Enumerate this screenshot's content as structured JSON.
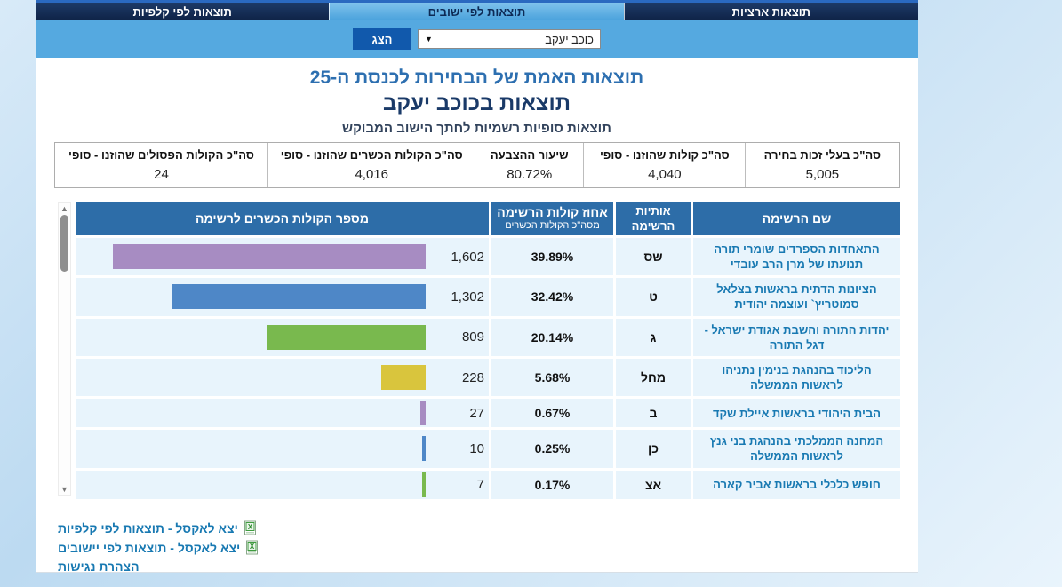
{
  "tabs": [
    {
      "label": "תוצאות ארציות",
      "active": false
    },
    {
      "label": "תוצאות לפי ישובים",
      "active": true
    },
    {
      "label": "תוצאות לפי קלפיות",
      "active": false
    }
  ],
  "filter": {
    "selected_locality": "כוכב יעקב",
    "dropdown_caret": "▼",
    "show_button_label": "הצג"
  },
  "titles": {
    "main": "תוצאות האמת של הבחירות לכנסת ה-25",
    "locality": "תוצאות בכוכב יעקב",
    "subtitle": "תוצאות סופיות רשמיות לחתך הישוב המבוקש"
  },
  "summary": [
    {
      "label": "סה\"כ בעלי זכות בחירה",
      "value": "5,005"
    },
    {
      "label": "סה\"כ קולות שהוזנו - סופי",
      "value": "4,040"
    },
    {
      "label": "שיעור ההצבעה",
      "value": "80.72%"
    },
    {
      "label": "סה\"כ הקולות הכשרים שהוזנו - סופי",
      "value": "4,016"
    },
    {
      "label": "סה\"כ הקולות הפסולים שהוזנו - סופי",
      "value": "24"
    }
  ],
  "table": {
    "headers": {
      "name": "שם הרשימה",
      "letters": "אותיות הרשימה",
      "percent_line1": "אחוז קולות הרשימה",
      "percent_line2": "מסה\"כ הקולות הכשרים",
      "votes": "מספר הקולות הכשרים לרשימה"
    },
    "rows": [
      {
        "name": "התאחדות הספרדים שומרי תורה תנועתו של מרן הרב עובדי",
        "letters": "שס",
        "percent": "39.89%",
        "percent_value": 39.89,
        "votes": "1,602",
        "bar_color": "#a78cc2"
      },
      {
        "name": "הציונות הדתית בראשות בצלאל סמוטריץ` ועוצמה יהודית",
        "letters": "ט",
        "percent": "32.42%",
        "percent_value": 32.42,
        "votes": "1,302",
        "bar_color": "#4e87c7"
      },
      {
        "name": "יהדות התורה והשבת אגודת ישראל - דגל התורה",
        "letters": "ג",
        "percent": "20.14%",
        "percent_value": 20.14,
        "votes": "809",
        "bar_color": "#79b94e"
      },
      {
        "name": "הליכוד בהנהגת בנימין נתניהו לראשות הממשלה",
        "letters": "מחל",
        "percent": "5.68%",
        "percent_value": 5.68,
        "votes": "228",
        "bar_color": "#d9c53d"
      },
      {
        "name": "הבית היהודי בראשות איילת שקד",
        "letters": "ב",
        "percent": "0.67%",
        "percent_value": 0.67,
        "votes": "27",
        "bar_color": "#a78cc2"
      },
      {
        "name": "המחנה הממלכתי בהנהגת בני גנץ לראשות הממשלה",
        "letters": "כן",
        "percent": "0.25%",
        "percent_value": 0.25,
        "votes": "10",
        "bar_color": "#4e87c7"
      },
      {
        "name": "חופש כלכלי בראשות אביר קארה",
        "letters": "אצ",
        "percent": "0.17%",
        "percent_value": 0.17,
        "votes": "7",
        "bar_color": "#79b94e"
      }
    ]
  },
  "chart_data": {
    "type": "bar",
    "orientation": "horizontal",
    "categories": [
      "שס",
      "ט",
      "ג",
      "מחל",
      "ב",
      "כן",
      "אצ"
    ],
    "values": [
      1602,
      1302,
      809,
      228,
      27,
      10,
      7
    ],
    "percents": [
      39.89,
      32.42,
      20.14,
      5.68,
      0.67,
      0.25,
      0.17
    ],
    "title": "מספר הקולות הכשרים לרשימה",
    "bar_colors": [
      "#a78cc2",
      "#4e87c7",
      "#79b94e",
      "#d9c53d",
      "#a78cc2",
      "#4e87c7",
      "#79b94e"
    ]
  },
  "links": [
    {
      "label": "יצא לאקסל - תוצאות לפי קלפיות",
      "has_icon": true
    },
    {
      "label": "יצא לאקסל - תוצאות לפי יישובים",
      "has_icon": true
    },
    {
      "label": "הצהרת נגישות",
      "has_icon": false
    }
  ],
  "colors": {
    "header_blue": "#2d6da8",
    "row_bg": "#e8f4fc",
    "banner_blue": "#55a9e0",
    "tab_navy": "#0f2347",
    "accent_link": "#1879b2",
    "button_blue": "#1159ac"
  }
}
